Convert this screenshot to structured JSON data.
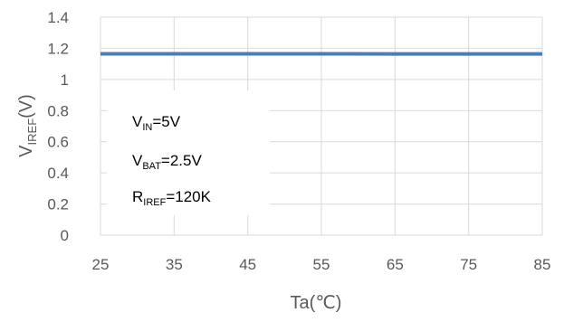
{
  "chart_data": {
    "type": "line",
    "xlabel": {
      "main": "Ta",
      "unit": "(℃)"
    },
    "ylabel": {
      "main": "V",
      "sub": "IREF",
      "unit": "(V)"
    },
    "x_ticks": [
      "25",
      "35",
      "45",
      "55",
      "65",
      "75",
      "85"
    ],
    "y_ticks": [
      "0",
      "0.2",
      "0.4",
      "0.6",
      "0.8",
      "1",
      "1.2",
      "1.4"
    ],
    "xlim": [
      25,
      85
    ],
    "ylim": [
      0,
      1.4
    ],
    "grid": true,
    "series": [
      {
        "color": "#4a7ebb",
        "x": [
          25,
          35,
          45,
          55,
          65,
          75,
          85
        ],
        "y": [
          1.165,
          1.165,
          1.165,
          1.165,
          1.164,
          1.164,
          1.164
        ]
      }
    ],
    "annotations": [
      {
        "main": "V",
        "sub": "IN",
        "rest": "=5V"
      },
      {
        "main": "V",
        "sub": "BAT",
        "rest": "=2.5V"
      },
      {
        "main": "R",
        "sub": "IREF",
        "rest": "=120K"
      }
    ],
    "colors": {
      "grid": "#d9d9d9",
      "text": "#595959",
      "line": "#4a7ebb"
    }
  }
}
